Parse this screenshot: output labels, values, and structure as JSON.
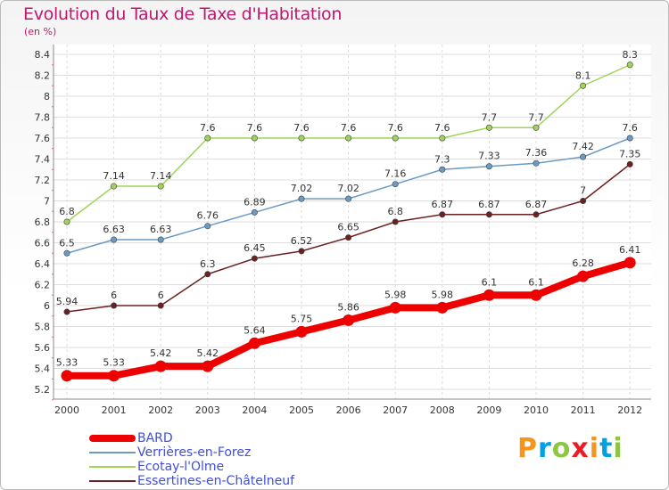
{
  "header": {
    "title": "Evolution du Taux de Taxe d'Habitation",
    "unit": "(en %)"
  },
  "logo": {
    "letters": [
      "P",
      "r",
      "o",
      "x",
      "i",
      "t",
      "i"
    ],
    "colors": [
      "#f7941d",
      "#00a0e3",
      "#8dc63f",
      "#ed1c24",
      "#f7941d",
      "#00a0e3",
      "#8dc63f"
    ]
  },
  "chart_data": {
    "type": "line",
    "title": "Evolution du Taux de Taxe d'Habitation",
    "ylabel": "(en %)",
    "x": [
      "2000",
      "2001",
      "2002",
      "2003",
      "2004",
      "2005",
      "2006",
      "2007",
      "2008",
      "2009",
      "2010",
      "2011",
      "2012"
    ],
    "ylim": [
      5.2,
      8.4
    ],
    "yticks": [
      "5.2",
      "5.4",
      "5.6",
      "5.8",
      "6",
      "6.2",
      "6.4",
      "6.6",
      "6.8",
      "7",
      "7.2",
      "7.4",
      "7.6",
      "7.8",
      "8",
      "8.2",
      "8.4"
    ],
    "grid": true,
    "legend_position": "bottom-left",
    "series": [
      {
        "name": "BARD",
        "color": "#ee0000",
        "values": [
          5.33,
          5.33,
          5.42,
          5.42,
          5.64,
          5.75,
          5.86,
          5.98,
          5.98,
          6.1,
          6.1,
          6.28,
          6.41
        ],
        "labels": [
          "5.33",
          "5.33",
          "5.42",
          "5.42",
          "5.64",
          "5.75",
          "5.86",
          "5.98",
          "5.98",
          "6.1",
          "6.1",
          "6.28",
          "6.41"
        ]
      },
      {
        "name": "Verrières-en-Forez",
        "color": "#6b9ac4",
        "values": [
          6.5,
          6.63,
          6.63,
          6.76,
          6.89,
          7.02,
          7.02,
          7.16,
          7.3,
          7.33,
          7.36,
          7.42,
          7.6
        ],
        "labels": [
          "6.5",
          "6.63",
          "6.63",
          "6.76",
          "6.89",
          "7.02",
          "7.02",
          "7.16",
          "7.3",
          "7.33",
          "7.36",
          "7.42",
          "7.6"
        ]
      },
      {
        "name": "Ecotay-l'Olme",
        "color": "#9fd35a",
        "values": [
          6.8,
          7.14,
          7.14,
          7.6,
          7.6,
          7.6,
          7.6,
          7.6,
          7.6,
          7.7,
          7.7,
          8.1,
          8.3
        ],
        "labels": [
          "6.8",
          "7.14",
          "7.14",
          "7.6",
          "7.6",
          "7.6",
          "7.6",
          "7.6",
          "7.6",
          "7.7",
          "7.7",
          "8.1",
          "8.3"
        ]
      },
      {
        "name": "Essertines-en-Châtelneuf",
        "color": "#6b2121",
        "values": [
          5.94,
          6,
          6,
          6.3,
          6.45,
          6.52,
          6.65,
          6.8,
          6.87,
          6.87,
          6.87,
          7,
          7.35
        ],
        "labels": [
          "5.94",
          "6",
          "6",
          "6.3",
          "6.45",
          "6.52",
          "6.65",
          "6.8",
          "6.87",
          "6.87",
          "6.87",
          "7",
          "7.35"
        ]
      }
    ]
  }
}
